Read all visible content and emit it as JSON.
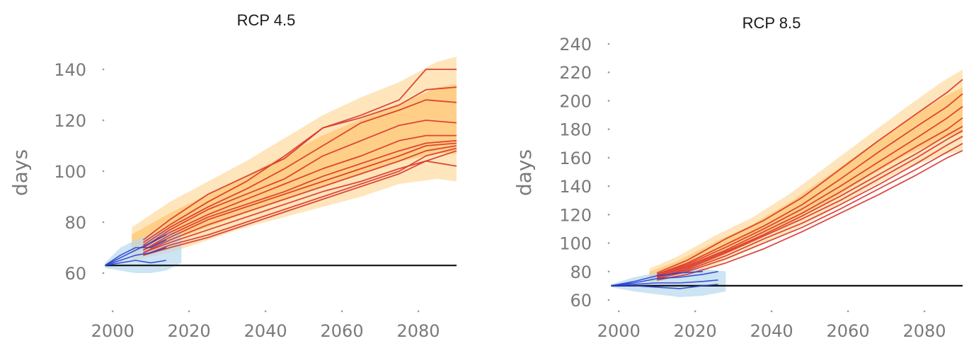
{
  "chart_data": [
    {
      "type": "line",
      "title": "RCP 4.5",
      "ylabel": "days",
      "xlabel": "",
      "xlim": [
        1997,
        2090
      ],
      "ylim": [
        55,
        145
      ],
      "x_ticks": [
        2000,
        2020,
        2040,
        2060,
        2080
      ],
      "y_ticks": [
        60,
        80,
        100,
        120,
        140
      ],
      "baseline": 63,
      "grid": false,
      "colors": {
        "future": "#d9352a",
        "historical": "#2b3fd0",
        "band": "#ffcf85",
        "hist_band": "#b7d8ee"
      },
      "historical": [
        {
          "x": [
            1998,
            2002,
            2006,
            2010,
            2014
          ],
          "values": [
            63,
            66,
            69,
            72,
            75
          ]
        },
        {
          "x": [
            1998,
            2002,
            2006,
            2010,
            2014
          ],
          "values": [
            63,
            65,
            67,
            68,
            70
          ]
        },
        {
          "x": [
            1998,
            2002,
            2006,
            2010,
            2014
          ],
          "values": [
            63,
            64,
            65,
            64,
            65
          ]
        },
        {
          "x": [
            1998,
            2002,
            2006,
            2010,
            2014
          ],
          "values": [
            63,
            67,
            70,
            70,
            73
          ]
        }
      ],
      "historical_band": {
        "x": [
          1998,
          2002,
          2006,
          2010,
          2014,
          2018
        ],
        "upper": [
          64,
          70,
          73,
          75,
          77,
          76
        ],
        "lower": [
          62,
          61,
          60,
          60,
          61,
          64
        ]
      },
      "band": {
        "x": [
          2005,
          2015,
          2025,
          2035,
          2045,
          2055,
          2065,
          2075,
          2085,
          2090
        ],
        "upper": [
          78,
          88,
          96,
          104,
          113,
          122,
          129,
          135,
          143,
          145
        ],
        "lower": [
          65,
          68,
          73,
          78,
          82,
          86,
          90,
          95,
          97,
          96
        ]
      },
      "series": [
        {
          "x": [
            2008,
            2015,
            2025,
            2035,
            2045,
            2055,
            2065,
            2075,
            2082,
            2090
          ],
          "values": [
            73,
            81,
            91,
            98,
            105,
            117,
            122,
            128,
            140,
            140
          ]
        },
        {
          "x": [
            2008,
            2015,
            2025,
            2035,
            2045,
            2055,
            2065,
            2075,
            2082,
            2090
          ],
          "values": [
            72,
            79,
            88,
            96,
            106,
            117,
            121,
            126,
            132,
            133
          ]
        },
        {
          "x": [
            2008,
            2015,
            2025,
            2035,
            2045,
            2055,
            2065,
            2075,
            2082,
            2090
          ],
          "values": [
            71,
            78,
            86,
            93,
            101,
            110,
            119,
            124,
            128,
            127
          ]
        },
        {
          "x": [
            2008,
            2015,
            2025,
            2035,
            2045,
            2055,
            2065,
            2075,
            2082,
            2090
          ],
          "values": [
            70,
            77,
            85,
            91,
            97,
            106,
            112,
            118,
            120,
            119
          ]
        },
        {
          "x": [
            2008,
            2015,
            2025,
            2035,
            2045,
            2055,
            2065,
            2075,
            2082,
            2090
          ],
          "values": [
            70,
            76,
            83,
            89,
            95,
            101,
            106,
            112,
            114,
            114
          ]
        },
        {
          "x": [
            2008,
            2015,
            2025,
            2035,
            2045,
            2055,
            2065,
            2075,
            2082,
            2090
          ],
          "values": [
            69,
            75,
            82,
            87,
            92,
            98,
            103,
            108,
            111,
            112
          ]
        },
        {
          "x": [
            2008,
            2015,
            2025,
            2035,
            2045,
            2055,
            2065,
            2075,
            2082,
            2090
          ],
          "values": [
            69,
            74,
            81,
            86,
            91,
            96,
            101,
            106,
            110,
            111
          ]
        },
        {
          "x": [
            2008,
            2015,
            2025,
            2035,
            2045,
            2055,
            2065,
            2075,
            2082,
            2090
          ],
          "values": [
            68,
            73,
            79,
            84,
            89,
            94,
            99,
            104,
            108,
            110
          ]
        },
        {
          "x": [
            2008,
            2015,
            2025,
            2035,
            2045,
            2055,
            2065,
            2075,
            2082,
            2090
          ],
          "values": [
            68,
            72,
            77,
            82,
            87,
            92,
            96,
            101,
            104,
            102
          ]
        },
        {
          "x": [
            2008,
            2015,
            2025,
            2035,
            2045,
            2055,
            2065,
            2075,
            2082,
            2090
          ],
          "values": [
            67,
            71,
            75,
            80,
            85,
            90,
            95,
            100,
            106,
            109
          ]
        },
        {
          "x": [
            2008,
            2015,
            2025,
            2035,
            2045,
            2055,
            2065,
            2075,
            2082,
            2090
          ],
          "values": [
            67,
            70,
            74,
            79,
            84,
            89,
            94,
            99,
            104,
            108
          ]
        }
      ]
    },
    {
      "type": "line",
      "title": "RCP 8.5",
      "ylabel": "days",
      "xlabel": "",
      "xlim": [
        1997,
        2090
      ],
      "ylim": [
        60,
        245
      ],
      "x_ticks": [
        2000,
        2020,
        2040,
        2060,
        2080
      ],
      "y_ticks": [
        60,
        80,
        100,
        120,
        140,
        160,
        180,
        200,
        220,
        240
      ],
      "baseline": 70,
      "grid": false,
      "colors": {
        "future": "#d9352a",
        "historical": "#2b3fd0",
        "band": "#ffcf85",
        "hist_band": "#b7d8ee"
      },
      "historical": [
        {
          "x": [
            1998,
            2004,
            2010,
            2016,
            2022,
            2026
          ],
          "values": [
            70,
            72,
            75,
            76,
            78,
            80
          ]
        },
        {
          "x": [
            1998,
            2004,
            2010,
            2016,
            2022,
            2026
          ],
          "values": [
            70,
            71,
            72,
            72,
            73,
            74
          ]
        },
        {
          "x": [
            1998,
            2004,
            2010,
            2016,
            2022,
            2026
          ],
          "values": [
            70,
            70,
            69,
            68,
            70,
            71
          ]
        },
        {
          "x": [
            1998,
            2004,
            2010,
            2016,
            2022
          ],
          "values": [
            70,
            73,
            77,
            79,
            80
          ]
        }
      ],
      "historical_band": {
        "x": [
          1998,
          2004,
          2010,
          2016,
          2022,
          2028
        ],
        "upper": [
          71,
          76,
          79,
          81,
          82,
          80
        ],
        "lower": [
          69,
          66,
          64,
          62,
          63,
          66
        ]
      },
      "band": {
        "x": [
          2008,
          2015,
          2025,
          2035,
          2045,
          2055,
          2065,
          2075,
          2085,
          2090
        ],
        "upper": [
          82,
          90,
          105,
          118,
          135,
          155,
          175,
          195,
          214,
          222
        ],
        "lower": [
          72,
          76,
          84,
          96,
          108,
          122,
          138,
          152,
          162,
          165
        ]
      },
      "series": [
        {
          "x": [
            2010,
            2018,
            2028,
            2038,
            2048,
            2058,
            2068,
            2078,
            2086,
            2090
          ],
          "values": [
            79,
            88,
            103,
            116,
            132,
            152,
            172,
            191,
            206,
            215
          ]
        },
        {
          "x": [
            2010,
            2018,
            2028,
            2038,
            2048,
            2058,
            2068,
            2078,
            2086,
            2090
          ],
          "values": [
            78,
            86,
            99,
            112,
            127,
            145,
            164,
            182,
            196,
            205
          ]
        },
        {
          "x": [
            2010,
            2018,
            2028,
            2038,
            2048,
            2058,
            2068,
            2078,
            2086,
            2090
          ],
          "values": [
            78,
            85,
            97,
            110,
            124,
            140,
            157,
            174,
            188,
            196
          ]
        },
        {
          "x": [
            2010,
            2018,
            2028,
            2038,
            2048,
            2058,
            2068,
            2078,
            2086,
            2090
          ],
          "values": [
            77,
            84,
            95,
            108,
            121,
            136,
            152,
            168,
            180,
            188
          ]
        },
        {
          "x": [
            2010,
            2018,
            2028,
            2038,
            2048,
            2058,
            2068,
            2078,
            2086,
            2090
          ],
          "values": [
            77,
            83,
            94,
            106,
            119,
            133,
            148,
            163,
            176,
            182
          ]
        },
        {
          "x": [
            2010,
            2018,
            2028,
            2038,
            2048,
            2058,
            2068,
            2078,
            2086,
            2090
          ],
          "values": [
            76,
            82,
            93,
            105,
            117,
            130,
            145,
            160,
            173,
            179
          ]
        },
        {
          "x": [
            2010,
            2018,
            2028,
            2038,
            2048,
            2058,
            2068,
            2078,
            2086,
            2090
          ],
          "values": [
            76,
            81,
            91,
            103,
            114,
            127,
            141,
            156,
            169,
            175
          ]
        },
        {
          "x": [
            2010,
            2018,
            2028,
            2038,
            2048,
            2058,
            2068,
            2078,
            2086,
            2090
          ],
          "values": [
            75,
            80,
            89,
            100,
            111,
            124,
            138,
            152,
            164,
            170
          ]
        },
        {
          "x": [
            2010,
            2018,
            2028,
            2038,
            2048,
            2058,
            2068,
            2078,
            2086,
            2090
          ],
          "values": [
            74,
            78,
            86,
            96,
            108,
            121,
            134,
            148,
            160,
            165
          ]
        }
      ]
    }
  ]
}
